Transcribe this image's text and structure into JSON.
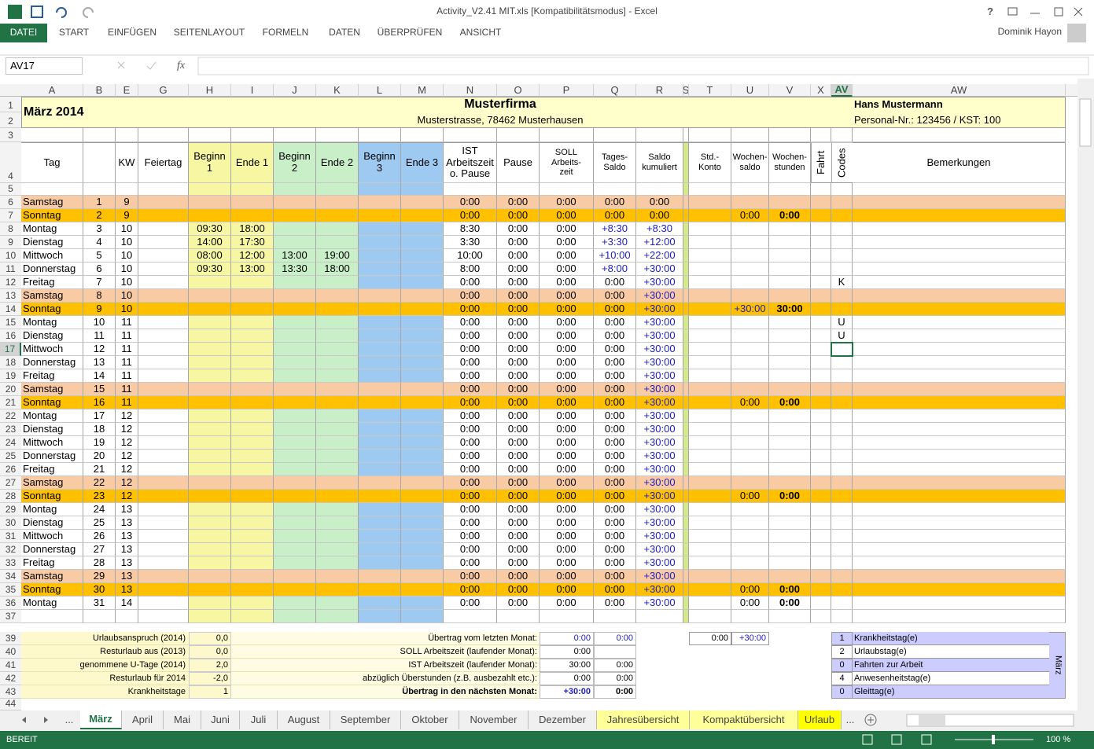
{
  "window": {
    "title": "Activity_V2.41 MIT.xls  [Kompatibilitätsmodus] - Excel",
    "help": "?",
    "user": "Dominik Hayon"
  },
  "ribbon_tabs": [
    "DATEI",
    "START",
    "EINFÜGEN",
    "SEITENLAYOUT",
    "FORMELN",
    "DATEN",
    "ÜBERPRÜFEN",
    "ANSICHT"
  ],
  "formula_bar": {
    "name_box": "AV17",
    "fx": "fx"
  },
  "columns": [
    "A",
    "B",
    "E",
    "G",
    "H",
    "I",
    "J",
    "K",
    "L",
    "M",
    "N",
    "O",
    "P",
    "Q",
    "R",
    "S",
    "T",
    "U",
    "V",
    "X",
    "AV",
    "AW"
  ],
  "selected_column": 20,
  "selected_row": 17,
  "row_numbers": [
    1,
    2,
    3,
    4,
    5,
    6,
    7,
    8,
    9,
    10,
    11,
    12,
    13,
    14,
    15,
    16,
    17,
    18,
    19,
    20,
    21,
    22,
    23,
    24,
    25,
    26,
    27,
    28,
    29,
    30,
    31,
    32,
    33,
    34,
    35,
    36,
    37,
    39,
    40,
    41,
    42,
    43,
    44
  ],
  "header": {
    "month": "März 2014",
    "company": "Musterfirma",
    "address": "Musterstrasse, 78462 Musterhausen",
    "person": "Hans Mustermann",
    "personal_nr": "Personal-Nr.: 123456 / KST: 100"
  },
  "table_headers": [
    "Tag",
    null,
    "KW",
    "Feiertag",
    "Beginn\n1",
    "Ende 1",
    "Beginn\n2",
    "Ende 2",
    "Beginn\n3",
    "Ende 3",
    "IST\nArbeitszeit\no. Pause",
    "Pause",
    "SOLL\nArbeits-\nzeit",
    "Tages-\nSaldo",
    "Saldo\nkumuliert",
    null,
    "Std.-\nKonto",
    "Wochen-\nsaldo",
    "Wochen-\nstunden",
    "Fahrt",
    "Codes",
    "Bemerkungen"
  ],
  "days": [
    {
      "tag": "Samstag",
      "date": 1,
      "kw": 9,
      "ist": "0:00",
      "pause": "0:00",
      "soll": "0:00",
      "tages": "0:00",
      "saldo": "0:00",
      "fill": "#f8cba4"
    },
    {
      "tag": "Sonntag",
      "date": 2,
      "kw": 9,
      "ist": "0:00",
      "pause": "0:00",
      "soll": "0:00",
      "tages": "0:00",
      "saldo": "0:00",
      "wsaldo": "0:00",
      "wstunden": "0:00",
      "fill": "#ffc000"
    },
    {
      "tag": "Montag",
      "date": 3,
      "kw": 10,
      "b1": "09:30",
      "e1": "18:00",
      "ist": "8:30",
      "pause": "0:00",
      "soll": "0:00",
      "tages": "+8:30",
      "saldo": "+8:30"
    },
    {
      "tag": "Dienstag",
      "date": 4,
      "kw": 10,
      "b1": "14:00",
      "e1": "17:30",
      "ist": "3:30",
      "pause": "0:00",
      "soll": "0:00",
      "tages": "+3:30",
      "saldo": "+12:00"
    },
    {
      "tag": "Mittwoch",
      "date": 5,
      "kw": 10,
      "b1": "08:00",
      "e1": "12:00",
      "b2": "13:00",
      "e2": "19:00",
      "ist": "10:00",
      "pause": "0:00",
      "soll": "0:00",
      "tages": "+10:00",
      "saldo": "+22:00"
    },
    {
      "tag": "Donnerstag",
      "date": 6,
      "kw": 10,
      "b1": "09:30",
      "e1": "13:00",
      "b2": "13:30",
      "e2": "18:00",
      "ist": "8:00",
      "pause": "0:00",
      "soll": "0:00",
      "tages": "+8:00",
      "saldo": "+30:00"
    },
    {
      "tag": "Freitag",
      "date": 7,
      "kw": 10,
      "ist": "0:00",
      "pause": "0:00",
      "soll": "0:00",
      "tages": "0:00",
      "saldo": "+30:00",
      "code": "K"
    },
    {
      "tag": "Samstag",
      "date": 8,
      "kw": 10,
      "ist": "0:00",
      "pause": "0:00",
      "soll": "0:00",
      "tages": "0:00",
      "saldo": "+30:00",
      "fill": "#f8cba4"
    },
    {
      "tag": "Sonntag",
      "date": 9,
      "kw": 10,
      "ist": "0:00",
      "pause": "0:00",
      "soll": "0:00",
      "tages": "0:00",
      "saldo": "+30:00",
      "wsaldo": "+30:00",
      "wstunden": "30:00",
      "fill": "#ffc000"
    },
    {
      "tag": "Montag",
      "date": 10,
      "kw": 11,
      "ist": "0:00",
      "pause": "0:00",
      "soll": "0:00",
      "tages": "0:00",
      "saldo": "+30:00",
      "code": "U"
    },
    {
      "tag": "Dienstag",
      "date": 11,
      "kw": 11,
      "ist": "0:00",
      "pause": "0:00",
      "soll": "0:00",
      "tages": "0:00",
      "saldo": "+30:00",
      "code": "U"
    },
    {
      "tag": "Mittwoch",
      "date": 12,
      "kw": 11,
      "ist": "0:00",
      "pause": "0:00",
      "soll": "0:00",
      "tages": "0:00",
      "saldo": "+30:00"
    },
    {
      "tag": "Donnerstag",
      "date": 13,
      "kw": 11,
      "ist": "0:00",
      "pause": "0:00",
      "soll": "0:00",
      "tages": "0:00",
      "saldo": "+30:00"
    },
    {
      "tag": "Freitag",
      "date": 14,
      "kw": 11,
      "ist": "0:00",
      "pause": "0:00",
      "soll": "0:00",
      "tages": "0:00",
      "saldo": "+30:00"
    },
    {
      "tag": "Samstag",
      "date": 15,
      "kw": 11,
      "ist": "0:00",
      "pause": "0:00",
      "soll": "0:00",
      "tages": "0:00",
      "saldo": "+30:00",
      "fill": "#f8cba4"
    },
    {
      "tag": "Sonntag",
      "date": 16,
      "kw": 11,
      "ist": "0:00",
      "pause": "0:00",
      "soll": "0:00",
      "tages": "0:00",
      "saldo": "+30:00",
      "wsaldo": "0:00",
      "wstunden": "0:00",
      "fill": "#ffc000"
    },
    {
      "tag": "Montag",
      "date": 17,
      "kw": 12,
      "ist": "0:00",
      "pause": "0:00",
      "soll": "0:00",
      "tages": "0:00",
      "saldo": "+30:00"
    },
    {
      "tag": "Dienstag",
      "date": 18,
      "kw": 12,
      "ist": "0:00",
      "pause": "0:00",
      "soll": "0:00",
      "tages": "0:00",
      "saldo": "+30:00"
    },
    {
      "tag": "Mittwoch",
      "date": 19,
      "kw": 12,
      "ist": "0:00",
      "pause": "0:00",
      "soll": "0:00",
      "tages": "0:00",
      "saldo": "+30:00"
    },
    {
      "tag": "Donnerstag",
      "date": 20,
      "kw": 12,
      "ist": "0:00",
      "pause": "0:00",
      "soll": "0:00",
      "tages": "0:00",
      "saldo": "+30:00"
    },
    {
      "tag": "Freitag",
      "date": 21,
      "kw": 12,
      "ist": "0:00",
      "pause": "0:00",
      "soll": "0:00",
      "tages": "0:00",
      "saldo": "+30:00"
    },
    {
      "tag": "Samstag",
      "date": 22,
      "kw": 12,
      "ist": "0:00",
      "pause": "0:00",
      "soll": "0:00",
      "tages": "0:00",
      "saldo": "+30:00",
      "fill": "#f8cba4"
    },
    {
      "tag": "Sonntag",
      "date": 23,
      "kw": 12,
      "ist": "0:00",
      "pause": "0:00",
      "soll": "0:00",
      "tages": "0:00",
      "saldo": "+30:00",
      "wsaldo": "0:00",
      "wstunden": "0:00",
      "fill": "#ffc000"
    },
    {
      "tag": "Montag",
      "date": 24,
      "kw": 13,
      "ist": "0:00",
      "pause": "0:00",
      "soll": "0:00",
      "tages": "0:00",
      "saldo": "+30:00"
    },
    {
      "tag": "Dienstag",
      "date": 25,
      "kw": 13,
      "ist": "0:00",
      "pause": "0:00",
      "soll": "0:00",
      "tages": "0:00",
      "saldo": "+30:00"
    },
    {
      "tag": "Mittwoch",
      "date": 26,
      "kw": 13,
      "ist": "0:00",
      "pause": "0:00",
      "soll": "0:00",
      "tages": "0:00",
      "saldo": "+30:00"
    },
    {
      "tag": "Donnerstag",
      "date": 27,
      "kw": 13,
      "ist": "0:00",
      "pause": "0:00",
      "soll": "0:00",
      "tages": "0:00",
      "saldo": "+30:00"
    },
    {
      "tag": "Freitag",
      "date": 28,
      "kw": 13,
      "ist": "0:00",
      "pause": "0:00",
      "soll": "0:00",
      "tages": "0:00",
      "saldo": "+30:00"
    },
    {
      "tag": "Samstag",
      "date": 29,
      "kw": 13,
      "ist": "0:00",
      "pause": "0:00",
      "soll": "0:00",
      "tages": "0:00",
      "saldo": "+30:00",
      "fill": "#f8cba4"
    },
    {
      "tag": "Sonntag",
      "date": 30,
      "kw": 13,
      "ist": "0:00",
      "pause": "0:00",
      "soll": "0:00",
      "tages": "0:00",
      "saldo": "+30:00",
      "wsaldo": "0:00",
      "wstunden": "0:00",
      "fill": "#ffc000"
    },
    {
      "tag": "Montag",
      "date": 31,
      "kw": 14,
      "ist": "0:00",
      "pause": "0:00",
      "soll": "0:00",
      "tages": "0:00",
      "saldo": "+30:00",
      "wsaldo": "0:00",
      "wstunden": "0:00"
    }
  ],
  "summary_left": [
    {
      "label": "Urlaubsanspruch (2014)",
      "value": "0,0"
    },
    {
      "label": "Resturlaub aus (2013)",
      "value": "0,0"
    },
    {
      "label": "genommene U-Tage (2014)",
      "value": "2,0"
    },
    {
      "label": "Resturlaub für 2014",
      "value": "-2,0"
    },
    {
      "label": "Krankheitstage",
      "value": "1"
    }
  ],
  "summary_mid": [
    {
      "label": "Übertrag vom letzten Monat:",
      "p": "0:00",
      "q": "0:00"
    },
    {
      "label": "SOLL Arbeitszeit (laufender Monat):",
      "p": "0:00"
    },
    {
      "label": "IST Arbeitszeit (laufender Monat):",
      "p": "30:00",
      "q": "0:00"
    },
    {
      "label": "abzüglich Überstunden (z.B. ausbezahlt etc.):",
      "p": "0:00",
      "q": "0:00"
    },
    {
      "label": "Übertrag in den nächsten Monat:",
      "p": "+30:00",
      "q": "0:00"
    }
  ],
  "konto": [
    "0:00",
    "+30:00"
  ],
  "legend": {
    "title": "März",
    "items": [
      {
        "n": 1,
        "label": "Krankheitstag(e)"
      },
      {
        "n": 2,
        "label": "Urlaubstag(e)"
      },
      {
        "n": 0,
        "label": "Fahrten zur Arbeit"
      },
      {
        "n": 4,
        "label": "Anwesenheitstag(e)"
      },
      {
        "n": 0,
        "label": "Gleittag(e)"
      }
    ]
  },
  "sheet_tabs": {
    "more": "...",
    "tabs": [
      {
        "label": "März",
        "active": true
      },
      {
        "label": "April"
      },
      {
        "label": "Mai"
      },
      {
        "label": "Juni"
      },
      {
        "label": "Juli"
      },
      {
        "label": "August"
      },
      {
        "label": "September"
      },
      {
        "label": "Oktober"
      },
      {
        "label": "November"
      },
      {
        "label": "Dezember"
      },
      {
        "label": "Jahresübersicht",
        "color": "#ffff99"
      },
      {
        "label": "Kompaktübersicht",
        "color": "#ffff99"
      },
      {
        "label": "Urlaub",
        "color": "#ffff00"
      }
    ]
  },
  "status": {
    "mode": "BEREIT",
    "zoom": "100 %"
  }
}
